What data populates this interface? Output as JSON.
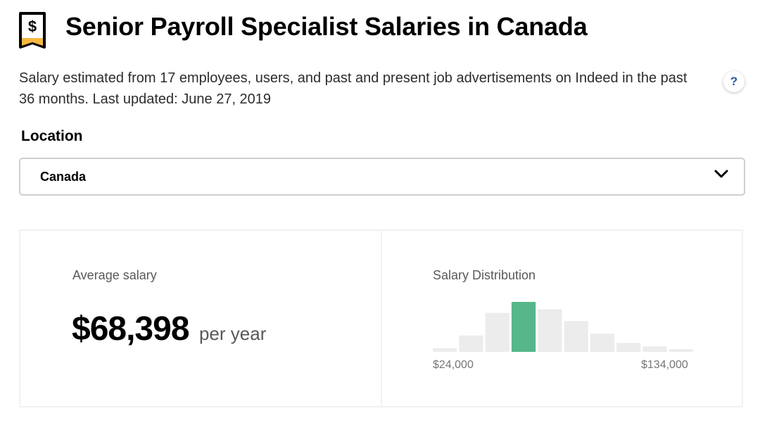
{
  "header": {
    "title": "Senior Payroll Specialist Salaries in Canada",
    "logo_icon": "salary-receipt-icon"
  },
  "description": "Salary estimated from 17 employees, users, and past and present job advertisements on Indeed in the past 36 months. Last updated: June 27, 2019",
  "help": {
    "label": "?"
  },
  "location": {
    "label": "Location",
    "selected": "Canada",
    "icon": "chevron-down-icon"
  },
  "average": {
    "label": "Average salary",
    "value": "$68,398",
    "period": "per year"
  },
  "distribution": {
    "label": "Salary Distribution",
    "min_label": "$24,000",
    "max_label": "$134,000"
  },
  "colors": {
    "accent": "#55b78a",
    "bar": "#ececec",
    "help": "#2557a7",
    "logo_accent": "#f5b942"
  },
  "chart_data": {
    "type": "bar",
    "title": "Salary Distribution",
    "x_range": [
      "$24,000",
      "$134,000"
    ],
    "bins": 10,
    "values": [
      4,
      18,
      43,
      55,
      47,
      34,
      20,
      10,
      6,
      3
    ],
    "highlighted_index": 3
  }
}
